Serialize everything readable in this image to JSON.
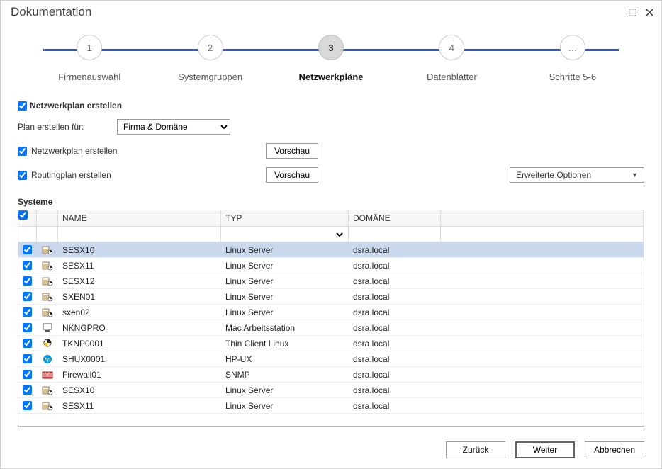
{
  "window": {
    "title": "Dokumentation"
  },
  "stepper": {
    "steps": [
      {
        "num": "1",
        "label": "Firmenauswahl"
      },
      {
        "num": "2",
        "label": "Systemgruppen"
      },
      {
        "num": "3",
        "label": "Netzwerkpläne"
      },
      {
        "num": "4",
        "label": "Datenblätter"
      },
      {
        "num": "…",
        "label": "Schritte 5-6"
      }
    ],
    "active_index": 2,
    "track_color": "#2f5bb7"
  },
  "section": {
    "create_plan_label": "Netzwerkplan erstellen",
    "plan_for_label": "Plan erstellen für:",
    "plan_for_value": "Firma & Domäne",
    "checkbox_netzplan": "Netzwerkplan erstellen",
    "checkbox_routing": "Routingplan erstellen",
    "preview_btn": "Vorschau",
    "advanced_btn": "Erweiterte Optionen",
    "systeme_label": "Systeme"
  },
  "table": {
    "columns": [
      "",
      "",
      "NAME",
      "TYP",
      "DOMÄNE",
      ""
    ],
    "rows": [
      {
        "checked": true,
        "icon": "server",
        "name": "SESX10",
        "typ": "Linux Server",
        "dom": "dsra.local",
        "selected": true
      },
      {
        "checked": true,
        "icon": "server",
        "name": "SESX11",
        "typ": "Linux Server",
        "dom": "dsra.local"
      },
      {
        "checked": true,
        "icon": "server",
        "name": "SESX12",
        "typ": "Linux Server",
        "dom": "dsra.local"
      },
      {
        "checked": true,
        "icon": "server",
        "name": "SXEN01",
        "typ": "Linux Server",
        "dom": "dsra.local"
      },
      {
        "checked": true,
        "icon": "server",
        "name": "sxen02",
        "typ": "Linux Server",
        "dom": "dsra.local"
      },
      {
        "checked": true,
        "icon": "workstation",
        "name": "NKNGPRO",
        "typ": "Mac Arbeitsstation",
        "dom": "dsra.local"
      },
      {
        "checked": true,
        "icon": "thinclient",
        "name": "TKNP0001",
        "typ": "Thin Client Linux",
        "dom": "dsra.local"
      },
      {
        "checked": true,
        "icon": "hp",
        "name": "SHUX0001",
        "typ": "HP-UX",
        "dom": "dsra.local"
      },
      {
        "checked": true,
        "icon": "firewall",
        "name": "Firewall01",
        "typ": "SNMP",
        "dom": "dsra.local"
      },
      {
        "checked": true,
        "icon": "server",
        "name": "SESX10",
        "typ": "Linux Server",
        "dom": "dsra.local"
      },
      {
        "checked": true,
        "icon": "server",
        "name": "SESX11",
        "typ": "Linux Server",
        "dom": "dsra.local"
      }
    ]
  },
  "footer": {
    "back": "Zurück",
    "next": "Weiter",
    "cancel": "Abbrechen"
  },
  "colors": {
    "selected_row": "#c9d8ec",
    "border": "#bbbbbb",
    "track": "#2f5bb7"
  }
}
